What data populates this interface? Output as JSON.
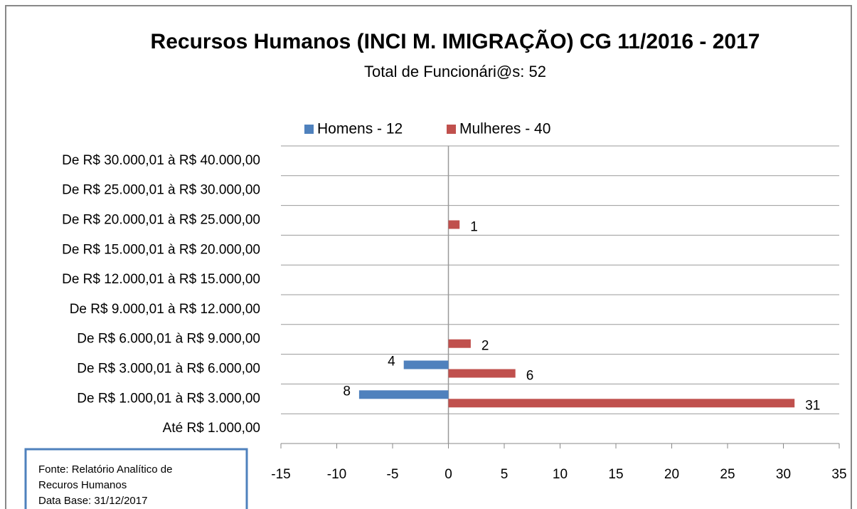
{
  "chart_data": {
    "type": "hbar",
    "title": "Recursos Humanos (INCI M. IMIGRAÇÃO) CG 11/2016 - 2017",
    "subtitle": "Total de Funcionári@s: 52",
    "categories": [
      "De R$ 30.000,01 à R$ 40.000,00",
      "De R$ 25.000,01 à R$ 30.000,00",
      "De R$ 20.000,01 à R$ 25.000,00",
      "De R$ 15.000,01 à R$ 20.000,00",
      "De R$ 12.000,01 à R$ 15.000,00",
      "De R$ 9.000,01 à R$ 12.000,00",
      "De R$ 6.000,01 à R$ 9.000,00",
      "De R$ 3.000,01 à R$ 6.000,00",
      "De R$ 1.000,01 à R$ 3.000,00",
      "Até R$ 1.000,00"
    ],
    "series": [
      {
        "name": "Homens - 12",
        "color": "#4f81bd",
        "values": [
          null,
          null,
          null,
          null,
          null,
          null,
          null,
          -4,
          -8,
          null
        ],
        "value_labels": [
          null,
          null,
          null,
          null,
          null,
          null,
          null,
          "4",
          "8",
          null
        ]
      },
      {
        "name": "Mulheres - 40",
        "color": "#c0504d",
        "values": [
          null,
          null,
          1,
          null,
          null,
          null,
          2,
          6,
          31,
          null
        ]
      }
    ],
    "xlim": [
      -15,
      35
    ],
    "xticks": [
      -15,
      -10,
      -5,
      0,
      5,
      10,
      15,
      20,
      25,
      30,
      35
    ],
    "legend": "top",
    "note": [
      "Fonte: Relatório Analítico de",
      "Recuros Humanos",
      "Data Base: 31/12/2017"
    ]
  }
}
